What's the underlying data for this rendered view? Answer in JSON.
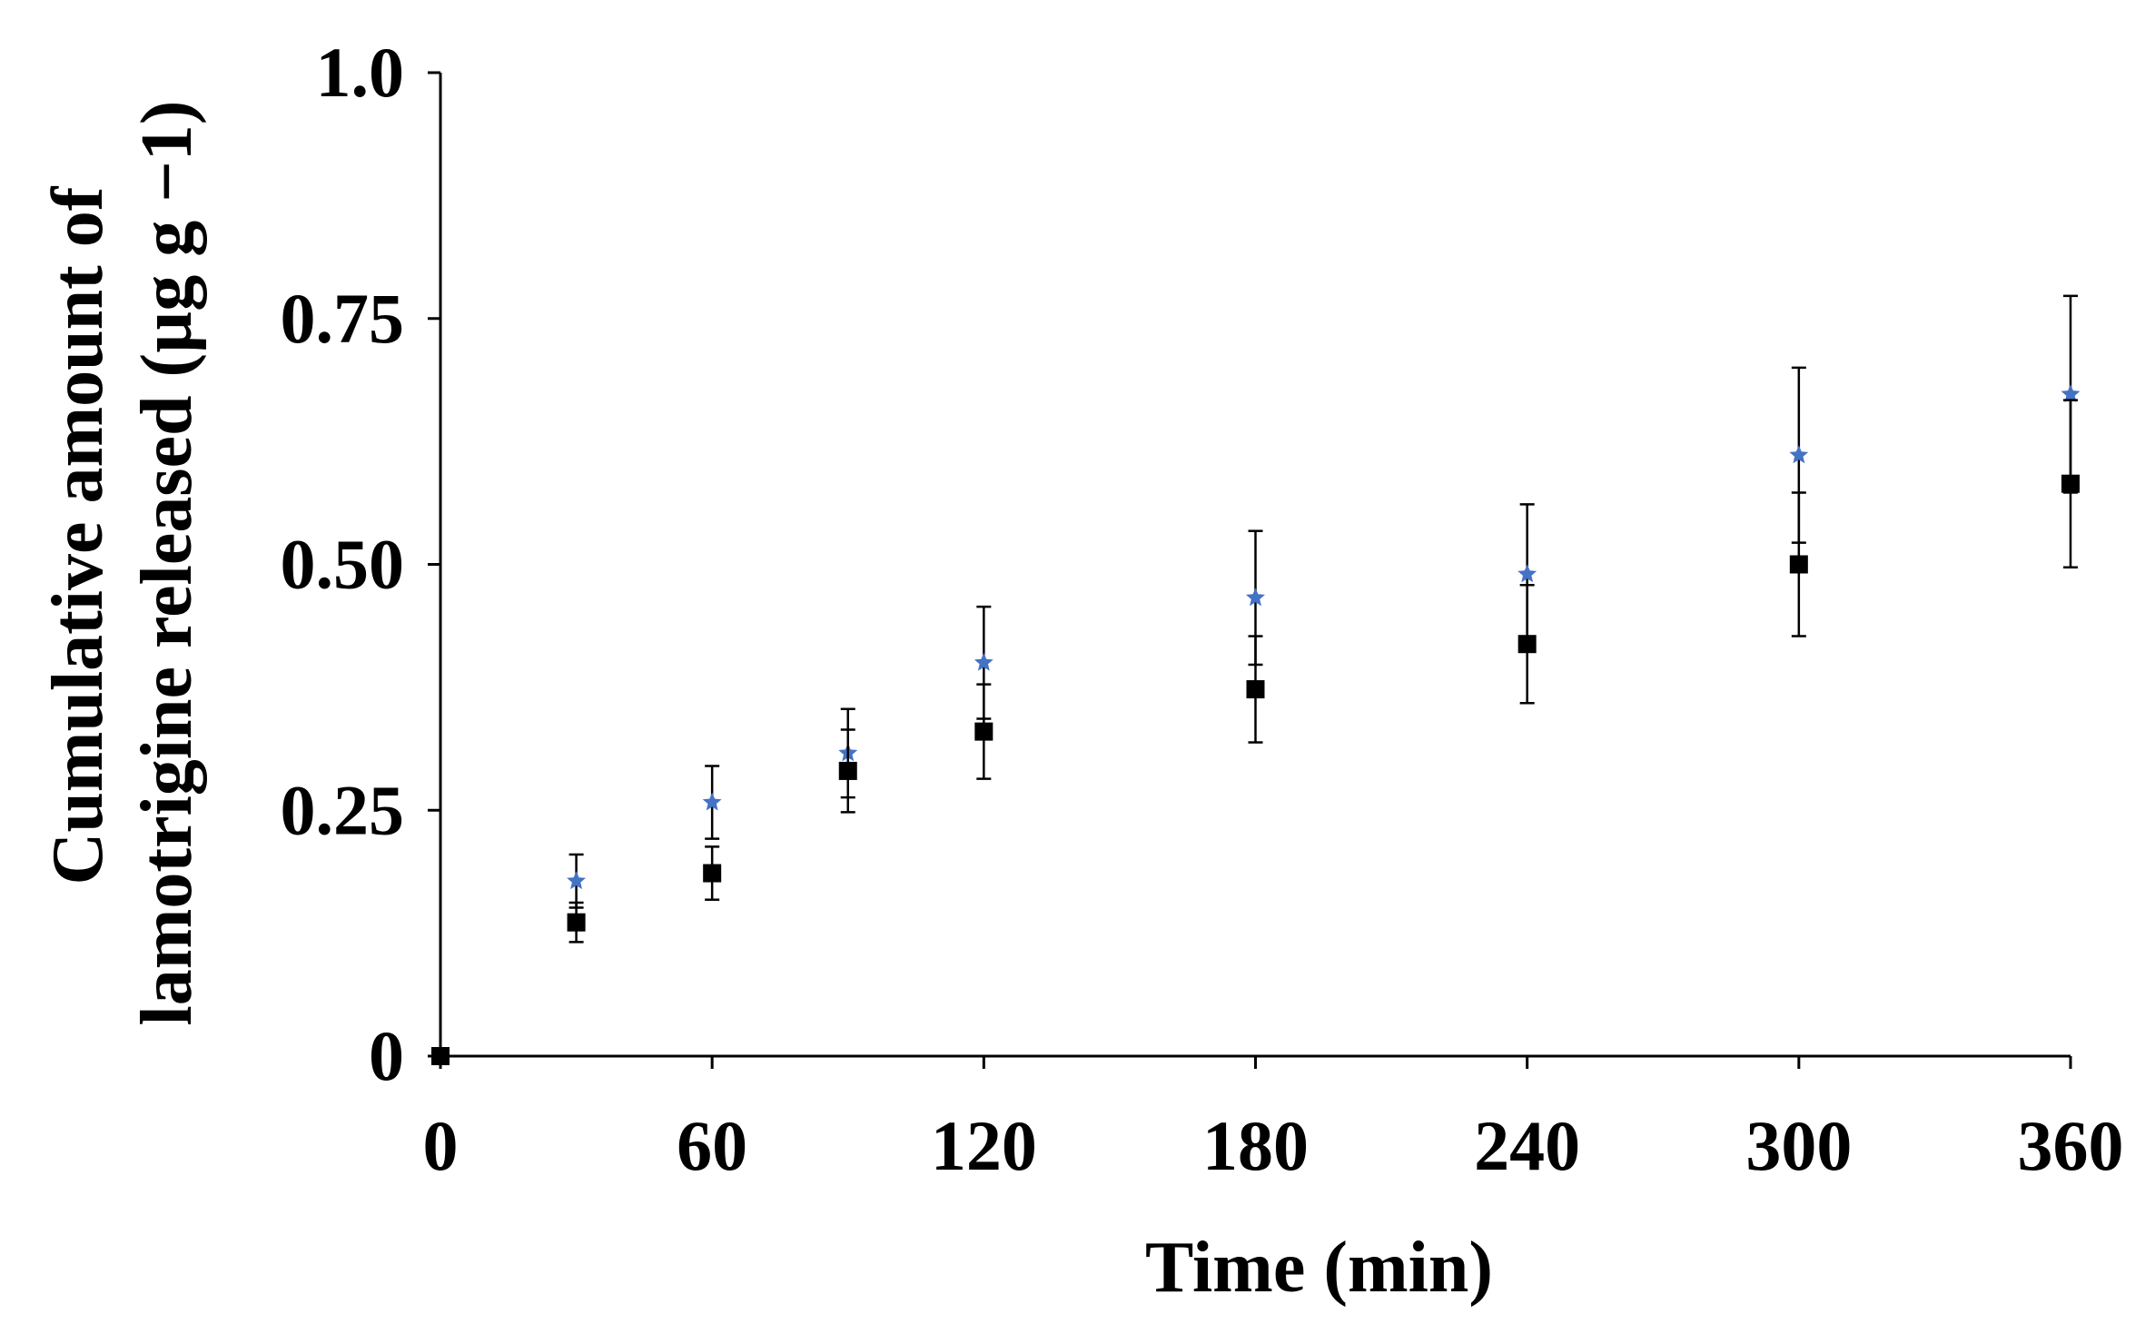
{
  "chart_data": {
    "type": "scatter",
    "title": "",
    "xlabel": "Time (min)",
    "ylabel": [
      "Cumulative amount of",
      "lamotrigine released (µg g −1)"
    ],
    "xlim": [
      0,
      360
    ],
    "ylim": [
      0,
      1.0
    ],
    "x_ticks": [
      0,
      60,
      120,
      180,
      240,
      300,
      360
    ],
    "x_tick_labels": [
      "0",
      "60",
      "120",
      "180",
      "240",
      "300",
      "360"
    ],
    "y_ticks": [
      0,
      0.25,
      0.5,
      0.75,
      1.0
    ],
    "y_tick_labels": [
      "0",
      "0.25",
      "0.50",
      "0.75",
      "1.0"
    ],
    "grid": false,
    "legend": "none",
    "series": [
      {
        "marker": "star",
        "color": "#4472c4",
        "points": [
          {
            "x": 30,
            "y": 0.178,
            "err": 0.027
          },
          {
            "x": 60,
            "y": 0.258,
            "err": 0.037
          },
          {
            "x": 90,
            "y": 0.308,
            "err": 0.045
          },
          {
            "x": 120,
            "y": 0.4,
            "err": 0.057
          },
          {
            "x": 180,
            "y": 0.466,
            "err": 0.068
          },
          {
            "x": 240,
            "y": 0.49,
            "err": 0.071
          },
          {
            "x": 300,
            "y": 0.611,
            "err": 0.089
          },
          {
            "x": 360,
            "y": 0.673,
            "err": 0.1
          }
        ]
      },
      {
        "marker": "square",
        "color": "#000000",
        "points": [
          {
            "x": 0,
            "y": 0.0,
            "err": 0
          },
          {
            "x": 30,
            "y": 0.136,
            "err": 0.02
          },
          {
            "x": 60,
            "y": 0.186,
            "err": 0.027
          },
          {
            "x": 90,
            "y": 0.29,
            "err": 0.042
          },
          {
            "x": 120,
            "y": 0.33,
            "err": 0.048
          },
          {
            "x": 180,
            "y": 0.373,
            "err": 0.054
          },
          {
            "x": 240,
            "y": 0.419,
            "err": 0.06
          },
          {
            "x": 300,
            "y": 0.5,
            "err": 0.073
          },
          {
            "x": 360,
            "y": 0.582,
            "err": 0.085
          }
        ]
      }
    ]
  }
}
